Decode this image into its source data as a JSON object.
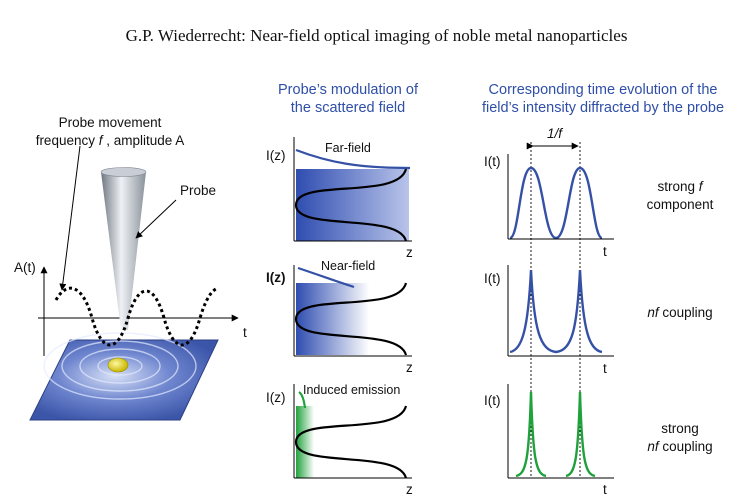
{
  "page": {
    "header": "G.P. Wiederrecht: Near-field optical imaging of noble metal nanoparticles"
  },
  "figure": {
    "left_panel": {
      "movement_line1": "Probe movement",
      "movement_line2_prefix": "frequency ",
      "movement_f": "f",
      "movement_line2_suffix": " , amplitude A",
      "probe_label": "Probe",
      "a_axis_label": "A(t)",
      "t_axis_label": "t"
    },
    "middle_column": {
      "heading_line1": "Probe’s modulation of",
      "heading_line2": "the scattered field",
      "panels": [
        {
          "y_label": "I(z)",
          "curve_label": "Far-field",
          "x_label": "z"
        },
        {
          "y_label": "I(z)",
          "curve_label": "Near-field",
          "x_label": "z"
        },
        {
          "y_label": "I(z)",
          "curve_label": "Induced emission",
          "x_label": "z"
        }
      ]
    },
    "right_column": {
      "heading_line1": "Corresponding time evolution of the",
      "heading_line2": "field’s intensity diffracted by the probe",
      "period_label": "1/f",
      "panels": [
        {
          "y_label": "I(t)",
          "x_label": "t",
          "caption_line1_prefix": "strong ",
          "caption_line1_italic": "f",
          "caption_line2": "component"
        },
        {
          "y_label": "I(t)",
          "x_label": "t",
          "caption_italic": "nf",
          "caption_suffix": " coupling"
        },
        {
          "y_label": "I(t)",
          "x_label": "t",
          "caption_line1": "strong",
          "caption_italic": "nf",
          "caption_suffix": " coupling"
        }
      ]
    },
    "colors": {
      "blue_heading": "#2f4fa8",
      "curve_blue": "#3551a6",
      "curve_green": "#1fa13c",
      "gradient_blue": "#2f4db0"
    }
  }
}
